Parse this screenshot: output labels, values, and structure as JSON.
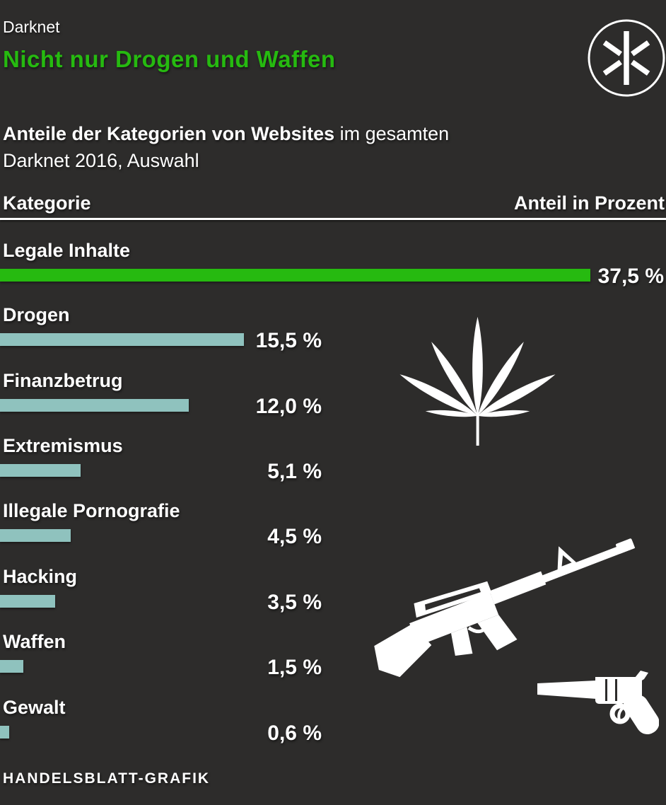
{
  "page": {
    "background": "#2d2c2b",
    "accent_green": "#26ba10",
    "bar_teal": "#8fc2be",
    "text_color": "#ffffff"
  },
  "header": {
    "kicker": "Darknet",
    "title": "Nicht nur Drogen und Waffen",
    "logo_icon": "asterisk-in-circle"
  },
  "subtitle": {
    "bold": "Anteile der Kategorien von Websites",
    "rest": " im gesamten",
    "line2": "Darknet 2016, Auswahl"
  },
  "table_header": {
    "category": "Kategorie",
    "value": "Anteil in Prozent"
  },
  "rows": [
    {
      "label": "Legale Inhalte",
      "percent": 37.5,
      "value_label": "37,5 %",
      "color": "#26ba10"
    },
    {
      "label": "Drogen",
      "percent": 15.5,
      "value_label": "15,5 %",
      "color": "#8fc2be"
    },
    {
      "label": "Finanzbetrug",
      "percent": 12.0,
      "value_label": "12,0 %",
      "color": "#8fc2be"
    },
    {
      "label": "Extremismus",
      "percent": 5.1,
      "value_label": "5,1 %",
      "color": "#8fc2be"
    },
    {
      "label": "Illegale Pornografie",
      "percent": 4.5,
      "value_label": "4,5 %",
      "color": "#8fc2be"
    },
    {
      "label": "Hacking",
      "percent": 3.5,
      "value_label": "3,5 %",
      "color": "#8fc2be"
    },
    {
      "label": "Waffen",
      "percent": 1.5,
      "value_label": "1,5 %",
      "color": "#8fc2be"
    },
    {
      "label": "Gewalt",
      "percent": 0.6,
      "value_label": "0,6 %",
      "color": "#8fc2be"
    }
  ],
  "icons": [
    "cannabis-leaf-icon",
    "assault-rifle-icon",
    "revolver-icon"
  ],
  "footer": {
    "credit": "HANDELSBLATT-GRAFIK"
  },
  "chart_data": {
    "type": "bar",
    "orientation": "horizontal",
    "title": "Nicht nur Drogen und Waffen",
    "subtitle": "Anteile der Kategorien von Websites im gesamten Darknet 2016, Auswahl",
    "xlabel": "Anteil in Prozent",
    "ylabel": "Kategorie",
    "categories": [
      "Legale Inhalte",
      "Drogen",
      "Finanzbetrug",
      "Extremismus",
      "Illegale Pornografie",
      "Hacking",
      "Waffen",
      "Gewalt"
    ],
    "values": [
      37.5,
      15.5,
      12.0,
      5.1,
      4.5,
      3.5,
      1.5,
      0.6
    ],
    "value_labels": [
      "37,5 %",
      "15,5 %",
      "12,0 %",
      "5,1 %",
      "4,5 %",
      "3,5 %",
      "1,5 %",
      "0,6 %"
    ],
    "unit": "%",
    "xlim": [
      0,
      42.3
    ],
    "grid": false,
    "legend": false,
    "bar_colors": [
      "#26ba10",
      "#8fc2be",
      "#8fc2be",
      "#8fc2be",
      "#8fc2be",
      "#8fc2be",
      "#8fc2be",
      "#8fc2be"
    ],
    "source_credit": "HANDELSBLATT-GRAFIK"
  }
}
